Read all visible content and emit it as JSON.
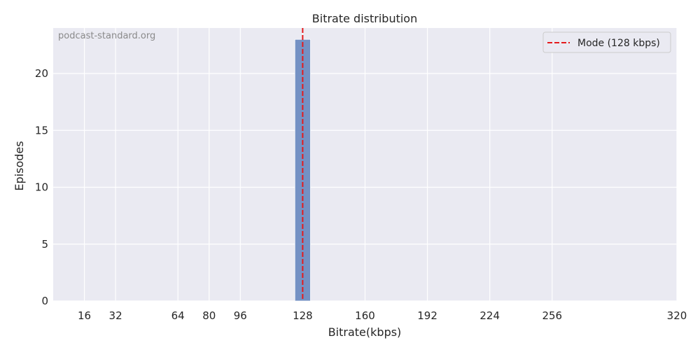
{
  "watermark": "podcast-standard.org",
  "chart_data": {
    "type": "bar",
    "title": "Bitrate distribution",
    "xlabel": "Bitrate(kbps)",
    "ylabel": "Episodes",
    "xlim": [
      0,
      320
    ],
    "ylim": [
      0,
      24
    ],
    "xticks": [
      16,
      32,
      64,
      80,
      96,
      128,
      160,
      192,
      224,
      256,
      320
    ],
    "yticks": [
      0,
      5,
      10,
      15,
      20
    ],
    "bars": [
      {
        "x_start": 124,
        "x_end": 132,
        "value": 23
      }
    ],
    "mode_line": {
      "x": 128,
      "label": "Mode (128 kbps)",
      "color": "#e41a1c",
      "style": "dashed"
    },
    "bar_color": "#7491c4",
    "background": "#eaeaf2",
    "grid": true,
    "legend_position": "top-right"
  }
}
